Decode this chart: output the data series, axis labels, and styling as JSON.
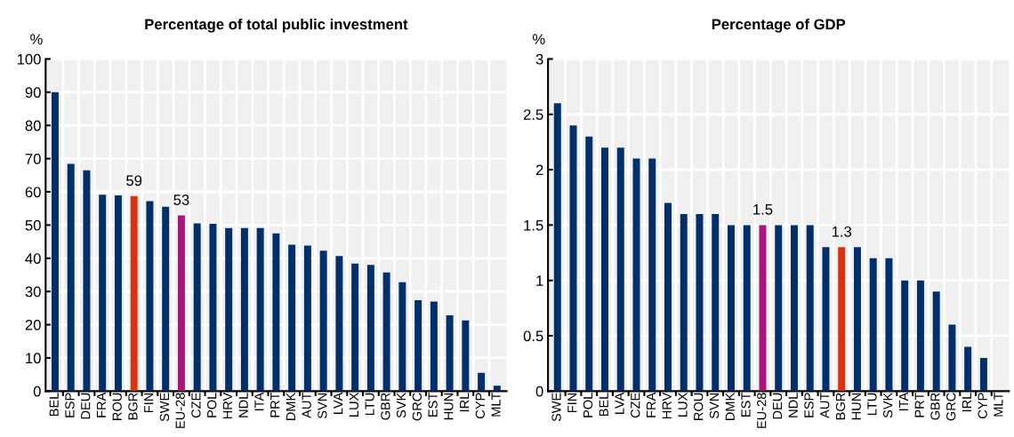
{
  "chart_data": [
    {
      "type": "bar",
      "title": "Percentage of total public investment",
      "ylabel": "%",
      "categories": [
        "BEL",
        "ESP",
        "DEU",
        "FRA",
        "ROU",
        "BGR",
        "FIN",
        "SWE",
        "EU-28",
        "CZE",
        "POL",
        "HRV",
        "NDL",
        "ITA",
        "PRT",
        "DMK",
        "AUT",
        "SVN",
        "LVA",
        "LUX",
        "LTU",
        "GBR",
        "SVK",
        "GRC",
        "EST",
        "HUN",
        "IRL",
        "CYP",
        "MLT"
      ],
      "values": [
        90,
        68.4,
        66.5,
        59.1,
        58.9,
        58.7,
        57.2,
        55.5,
        52.9,
        50.5,
        50.4,
        49.1,
        49.1,
        49.1,
        47.5,
        44.1,
        43.8,
        42.3,
        40.7,
        38.4,
        38.0,
        35.7,
        32.8,
        27.4,
        27.0,
        22.8,
        21.3,
        5.5,
        1.6
      ],
      "colors": [
        "#002f6c",
        "#002f6c",
        "#002f6c",
        "#002f6c",
        "#002f6c",
        "#dd3010",
        "#002f6c",
        "#002f6c",
        "#a6177a",
        "#002f6c",
        "#002f6c",
        "#002f6c",
        "#002f6c",
        "#002f6c",
        "#002f6c",
        "#002f6c",
        "#002f6c",
        "#002f6c",
        "#002f6c",
        "#002f6c",
        "#002f6c",
        "#002f6c",
        "#002f6c",
        "#002f6c",
        "#002f6c",
        "#002f6c",
        "#002f6c",
        "#002f6c",
        "#002f6c"
      ],
      "value_labels": [
        null,
        null,
        null,
        null,
        null,
        "59",
        null,
        null,
        "53",
        null,
        null,
        null,
        null,
        null,
        null,
        null,
        null,
        null,
        null,
        null,
        null,
        null,
        null,
        null,
        null,
        null,
        null,
        null,
        null
      ],
      "ylim": [
        0,
        100
      ],
      "yticks": [
        0,
        10,
        20,
        30,
        40,
        50,
        60,
        70,
        80,
        90,
        100
      ],
      "grid": true,
      "legend": false
    },
    {
      "type": "bar",
      "title": "Percentage of GDP",
      "ylabel": "%",
      "categories": [
        "SWE",
        "FIN",
        "POL",
        "BEL",
        "LVA",
        "CZE",
        "FRA",
        "HRV",
        "LUX",
        "ROU",
        "SVN",
        "DMK",
        "EST",
        "EU-28",
        "DEU",
        "NDL",
        "ESP",
        "AUT",
        "BGR",
        "HUN",
        "LTU",
        "SVK",
        "ITA",
        "PRT",
        "GBR",
        "GRC",
        "IRL",
        "CYP",
        "MLT"
      ],
      "values": [
        2.6,
        2.4,
        2.3,
        2.2,
        2.2,
        2.1,
        2.1,
        1.7,
        1.6,
        1.6,
        1.6,
        1.5,
        1.5,
        1.5,
        1.5,
        1.5,
        1.5,
        1.3,
        1.3,
        1.3,
        1.2,
        1.2,
        1.0,
        1.0,
        0.9,
        0.6,
        0.4,
        0.3,
        0
      ],
      "colors": [
        "#002f6c",
        "#002f6c",
        "#002f6c",
        "#002f6c",
        "#002f6c",
        "#002f6c",
        "#002f6c",
        "#002f6c",
        "#002f6c",
        "#002f6c",
        "#002f6c",
        "#002f6c",
        "#002f6c",
        "#a6177a",
        "#002f6c",
        "#002f6c",
        "#002f6c",
        "#002f6c",
        "#dd3010",
        "#002f6c",
        "#002f6c",
        "#002f6c",
        "#002f6c",
        "#002f6c",
        "#002f6c",
        "#002f6c",
        "#002f6c",
        "#002f6c",
        "#002f6c"
      ],
      "value_labels": [
        null,
        null,
        null,
        null,
        null,
        null,
        null,
        null,
        null,
        null,
        null,
        null,
        null,
        "1.5",
        null,
        null,
        null,
        null,
        "1.3",
        null,
        null,
        null,
        null,
        null,
        null,
        null,
        null,
        null,
        null
      ],
      "ylim": [
        0,
        3
      ],
      "yticks": [
        0,
        0.5,
        1,
        1.5,
        2,
        2.5,
        3
      ],
      "grid": true,
      "legend": false
    }
  ]
}
